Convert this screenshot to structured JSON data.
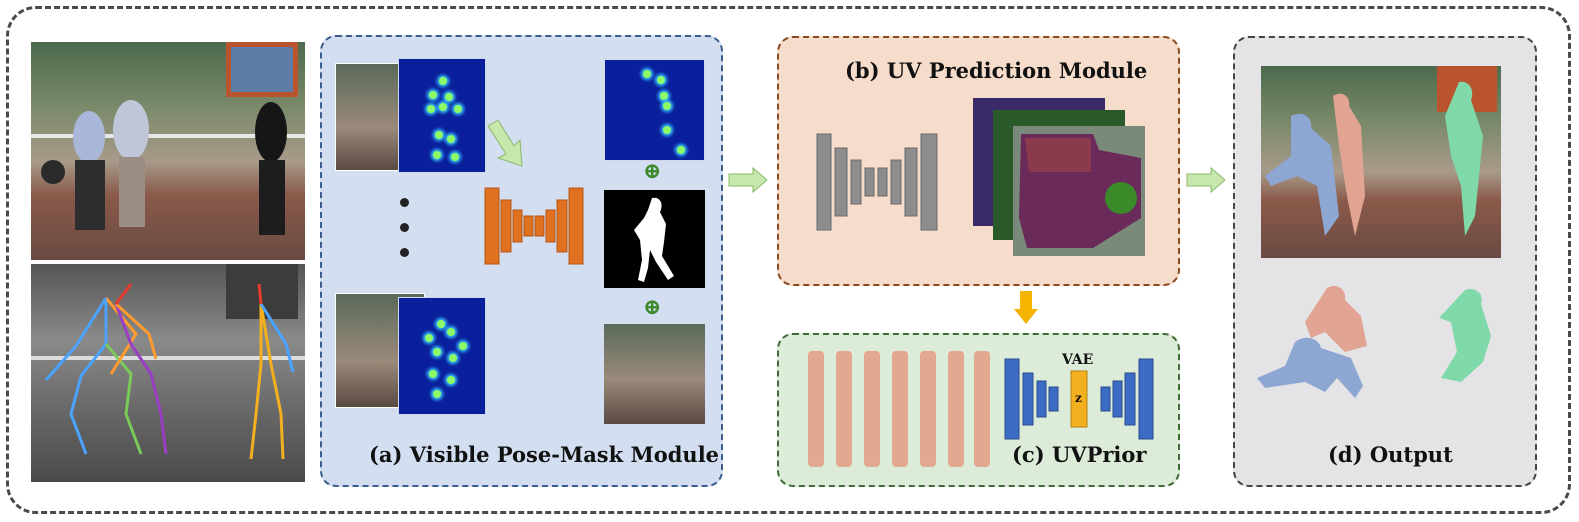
{
  "panels": {
    "a_title": "(a) Visible Pose-Mask Module",
    "b_title": "(b) UV Prediction Module",
    "c_title": "(c) UVPrior",
    "d_title": "(d) Output"
  },
  "vae": {
    "label": "VAE",
    "latent": "z"
  },
  "symbols": {
    "oplus": "⊕"
  },
  "colors": {
    "panel_a_bg": "#d3dff0",
    "panel_b_bg": "#f5dccb",
    "panel_c_bg": "#ddecd9",
    "panel_d_bg": "#e4e4e6",
    "encoder_orange": "#e0711f",
    "encoder_gray": "#8d8d8d",
    "vae_blue": "#3c6cc4",
    "latent_yellow": "#f2b01e",
    "arrow_green": "#c7e7ad",
    "arrow_orange": "#f4b400",
    "skeleton_colors": [
      "#e63b2e",
      "#ff9b2f",
      "#7ac95b",
      "#9a3fc4",
      "#4aa3ff",
      "#f2b01e"
    ]
  }
}
